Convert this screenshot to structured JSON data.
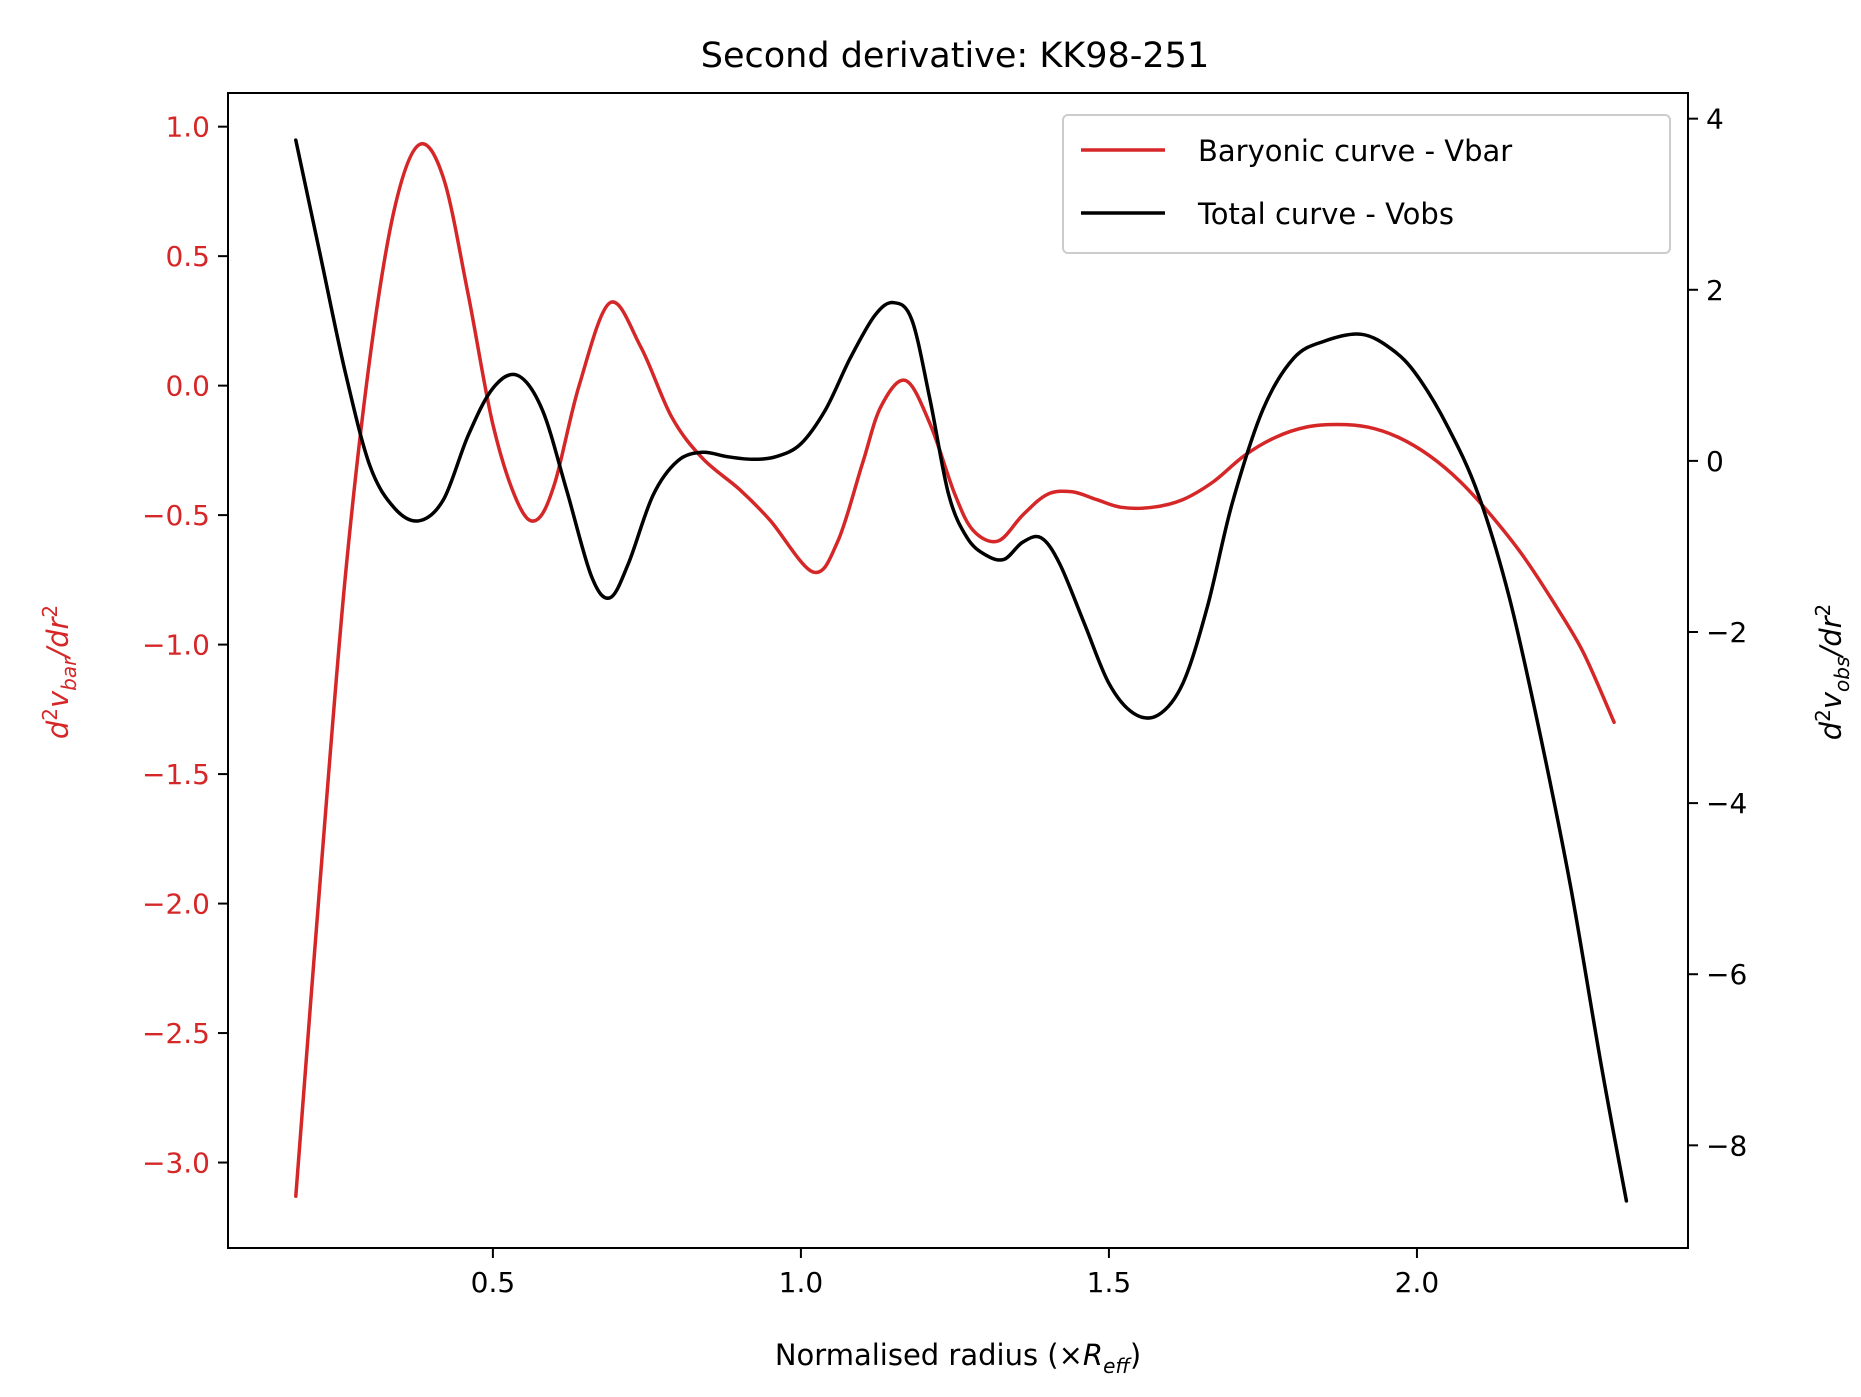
{
  "chart_data": {
    "type": "line",
    "title": "Second derivative: KK98-251",
    "xlabel": "Normalised radius (×R_eff)",
    "xlabel_parts": {
      "main": "Normalised radius (×",
      "symbol": "R",
      "sub": "eff",
      "close": ")"
    },
    "ylabel_left": "d²v_bar/dr²",
    "ylabel_left_parts": {
      "d": "d",
      "sup": "2",
      "v": "v",
      "sub": "bar",
      "tail": "/dr",
      "sup2": "2"
    },
    "ylabel_right": "d²v_obs/dr²",
    "ylabel_right_parts": {
      "d": "d",
      "sup": "2",
      "v": "v",
      "sub": "obs",
      "tail": "/dr",
      "sup2": "2"
    },
    "xlim": [
      0.07,
      2.44
    ],
    "ylim_left": [
      -3.33,
      1.13
    ],
    "ylim_right": [
      -9.2,
      4.3
    ],
    "xticks": [
      0.5,
      1.0,
      1.5,
      2.0
    ],
    "xtick_labels": [
      "0.5",
      "1.0",
      "1.5",
      "2.0"
    ],
    "yticks_left": [
      1.0,
      0.5,
      0.0,
      -0.5,
      -1.0,
      -1.5,
      -2.0,
      -2.5,
      -3.0
    ],
    "ytick_labels_left": [
      "1.0",
      "0.5",
      "0.0",
      "−0.5",
      "−1.0",
      "−1.5",
      "−2.0",
      "−2.5",
      "−3.0"
    ],
    "yticks_right": [
      4,
      2,
      0,
      -2,
      -4,
      -6,
      -8
    ],
    "ytick_labels_right": [
      "4",
      "2",
      "0",
      "−2",
      "−4",
      "−6",
      "−8"
    ],
    "grid": false,
    "legend_position": "top-right",
    "colors": {
      "bar": "#d62728",
      "obs": "#000000",
      "left_axis": "#d62728",
      "frame": "#000000"
    },
    "series": [
      {
        "name": "Baryonic curve - Vbar",
        "axis": "left",
        "color": "#d62728",
        "x": [
          0.18,
          0.22,
          0.26,
          0.3,
          0.34,
          0.38,
          0.42,
          0.46,
          0.5,
          0.54,
          0.57,
          0.6,
          0.64,
          0.69,
          0.74,
          0.79,
          0.84,
          0.9,
          0.95,
          1.02,
          1.06,
          1.1,
          1.13,
          1.17,
          1.21,
          1.25,
          1.28,
          1.32,
          1.36,
          1.4,
          1.44,
          1.48,
          1.52,
          1.57,
          1.62,
          1.67,
          1.72,
          1.77,
          1.82,
          1.87,
          1.92,
          1.97,
          2.02,
          2.07,
          2.12,
          2.17,
          2.22,
          2.27,
          2.32
        ],
        "y": [
          -3.13,
          -1.9,
          -0.75,
          0.1,
          0.68,
          0.93,
          0.8,
          0.35,
          -0.15,
          -0.45,
          -0.52,
          -0.38,
          0.0,
          0.32,
          0.15,
          -0.12,
          -0.28,
          -0.4,
          -0.52,
          -0.72,
          -0.6,
          -0.3,
          -0.08,
          0.02,
          -0.15,
          -0.42,
          -0.56,
          -0.6,
          -0.5,
          -0.42,
          -0.41,
          -0.44,
          -0.47,
          -0.47,
          -0.44,
          -0.37,
          -0.27,
          -0.2,
          -0.16,
          -0.15,
          -0.16,
          -0.2,
          -0.27,
          -0.37,
          -0.5,
          -0.65,
          -0.83,
          -1.03,
          -1.3
        ]
      },
      {
        "name": "Total curve - Vobs",
        "axis": "right",
        "color": "#000000",
        "x": [
          0.18,
          0.22,
          0.26,
          0.3,
          0.34,
          0.38,
          0.42,
          0.46,
          0.5,
          0.54,
          0.58,
          0.62,
          0.66,
          0.69,
          0.72,
          0.76,
          0.8,
          0.84,
          0.88,
          0.92,
          0.96,
          1.0,
          1.04,
          1.08,
          1.12,
          1.15,
          1.18,
          1.21,
          1.24,
          1.27,
          1.3,
          1.33,
          1.36,
          1.39,
          1.42,
          1.46,
          1.5,
          1.54,
          1.58,
          1.62,
          1.66,
          1.7,
          1.75,
          1.8,
          1.85,
          1.91,
          1.96,
          2.0,
          2.05,
          2.1,
          2.15,
          2.2,
          2.25,
          2.3,
          2.34
        ],
        "y": [
          3.75,
          2.4,
          1.05,
          -0.05,
          -0.55,
          -0.7,
          -0.45,
          0.3,
          0.85,
          1.0,
          0.6,
          -0.35,
          -1.35,
          -1.6,
          -1.2,
          -0.4,
          0.0,
          0.1,
          0.05,
          0.02,
          0.05,
          0.2,
          0.6,
          1.2,
          1.7,
          1.85,
          1.65,
          0.7,
          -0.4,
          -0.9,
          -1.1,
          -1.15,
          -0.95,
          -0.9,
          -1.2,
          -1.9,
          -2.6,
          -2.95,
          -2.97,
          -2.6,
          -1.7,
          -0.5,
          0.6,
          1.2,
          1.4,
          1.48,
          1.3,
          1.0,
          0.4,
          -0.4,
          -1.6,
          -3.2,
          -5.0,
          -7.1,
          -8.65
        ]
      }
    ]
  }
}
